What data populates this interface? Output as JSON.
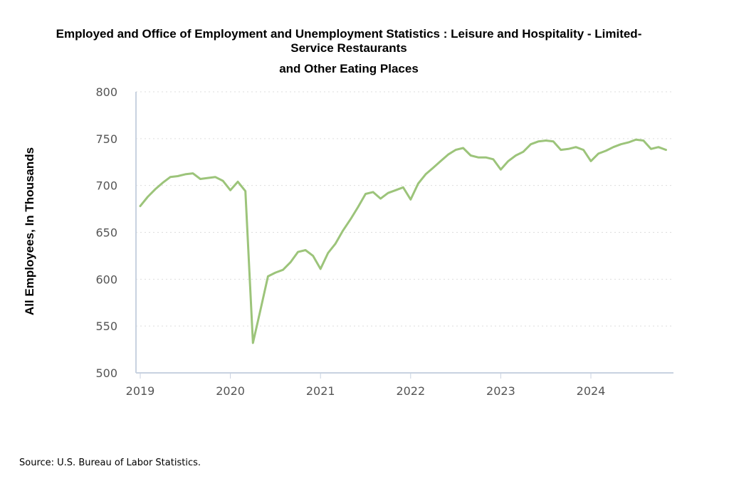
{
  "chart_data": {
    "type": "line",
    "title_line1": "Employed and Office of Employment and Unemployment Statistics : Leisure and Hospitality - Limited-Service Restaurants",
    "title_line2": "and Other Eating Places",
    "ylabel": "All Employees, In Thousands",
    "xlabel": "",
    "ylim": [
      500,
      800
    ],
    "y_ticks": [
      500,
      550,
      600,
      650,
      700,
      750,
      800
    ],
    "x_ticks": [
      "2019",
      "2020",
      "2021",
      "2022",
      "2023",
      "2024"
    ],
    "grid": "horizontal dotted",
    "line_color": "#9cc47a",
    "series": [
      {
        "x": [
          "2019-01",
          "2019-02",
          "2019-03",
          "2019-04",
          "2019-05",
          "2019-06",
          "2019-07",
          "2019-08",
          "2019-09",
          "2019-10",
          "2019-11",
          "2019-12",
          "2020-01",
          "2020-02",
          "2020-03",
          "2020-04",
          "2020-05",
          "2020-06",
          "2020-07",
          "2020-08",
          "2020-09",
          "2020-10",
          "2020-11",
          "2020-12",
          "2021-01",
          "2021-02",
          "2021-03",
          "2021-04",
          "2021-05",
          "2021-06",
          "2021-07",
          "2021-08",
          "2021-09",
          "2021-10",
          "2021-11",
          "2021-12",
          "2022-01",
          "2022-02",
          "2022-03",
          "2022-04",
          "2022-05",
          "2022-06",
          "2022-07",
          "2022-08",
          "2022-09",
          "2022-10",
          "2022-11",
          "2022-12",
          "2023-01",
          "2023-02",
          "2023-03",
          "2023-04",
          "2023-05",
          "2023-06",
          "2023-07",
          "2023-08",
          "2023-09",
          "2023-10",
          "2023-11",
          "2023-12",
          "2024-01",
          "2024-02",
          "2024-03",
          "2024-04",
          "2024-05",
          "2024-06",
          "2024-07",
          "2024-08",
          "2024-09",
          "2024-10",
          "2024-11"
        ],
        "values": [
          678,
          688,
          696,
          703,
          709,
          710,
          712,
          713,
          707,
          708,
          709,
          705,
          695,
          704,
          694,
          532,
          567,
          603,
          607,
          610,
          618,
          629,
          631,
          625,
          611,
          628,
          638,
          652,
          664,
          677,
          691,
          693,
          686,
          692,
          695,
          698,
          685,
          702,
          712,
          719,
          726,
          733,
          738,
          740,
          732,
          730,
          730,
          728,
          717,
          726,
          732,
          736,
          744,
          747,
          748,
          747,
          738,
          739,
          741,
          738,
          726,
          734,
          737,
          741,
          744,
          746,
          749,
          748,
          739,
          741,
          738
        ]
      }
    ]
  },
  "source": "Source: U.S. Bureau of Labor Statistics."
}
